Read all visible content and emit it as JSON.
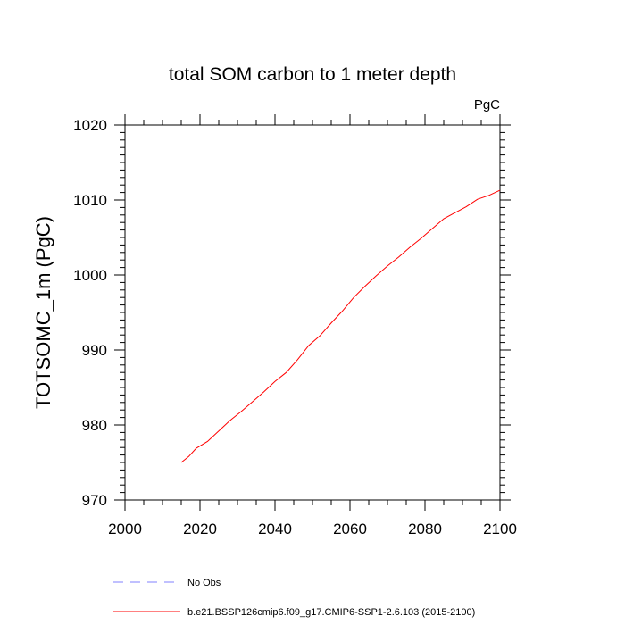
{
  "chart_data": {
    "type": "line",
    "title": "total SOM carbon to 1 meter depth",
    "units_label": "PgC",
    "ylabel": "TOTSOMC_1m  (PgC)",
    "xlabel": "",
    "xlim": [
      2000,
      2100
    ],
    "ylim": [
      970,
      1020
    ],
    "xticks": [
      2000,
      2020,
      2040,
      2060,
      2080,
      2100
    ],
    "yticks": [
      970,
      980,
      990,
      1000,
      1010,
      1020
    ],
    "x_minor_step": 5,
    "y_minor_step": 1,
    "grid": false,
    "legend_position": "bottom",
    "series": [
      {
        "name": "b.e21.BSSP126cmip6.f09_g17.CMIP6-SSP1-2.6.103 (2015-2100)",
        "color": "#ff0000",
        "dash": "solid",
        "x": [
          2015,
          2017,
          2019,
          2022,
          2025,
          2028,
          2031,
          2034,
          2037,
          2040,
          2043,
          2046,
          2049,
          2052,
          2055,
          2058,
          2061,
          2064,
          2067,
          2070,
          2073,
          2076,
          2079,
          2082,
          2085,
          2088,
          2091,
          2094,
          2097,
          2100
        ],
        "values": [
          975.0,
          975.8,
          976.9,
          977.8,
          979.2,
          980.6,
          981.8,
          983.1,
          984.4,
          985.8,
          987.0,
          988.7,
          990.6,
          991.9,
          993.6,
          995.2,
          997.0,
          998.5,
          999.9,
          1001.2,
          1002.4,
          1003.7,
          1004.9,
          1006.2,
          1007.5,
          1008.3,
          1009.1,
          1010.1,
          1010.6,
          1011.3
        ]
      }
    ],
    "legend": [
      {
        "label": "No Obs",
        "color": "#8080ff",
        "dash": "dashed"
      },
      {
        "label": "b.e21.BSSP126cmip6.f09_g17.CMIP6-SSP1-2.6.103 (2015-2100)",
        "color": "#ff0000",
        "dash": "solid"
      }
    ]
  }
}
